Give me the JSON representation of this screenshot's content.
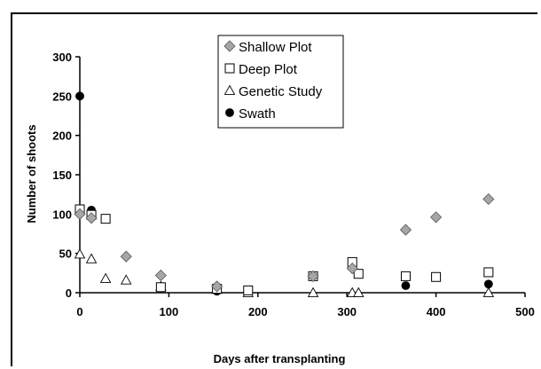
{
  "chart_data": {
    "type": "scatter",
    "title": "",
    "xlabel": "Days after transplanting",
    "ylabel": "Number of shoots",
    "xlim": [
      0,
      500
    ],
    "ylim": [
      0,
      300
    ],
    "xticks": [
      0,
      100,
      200,
      300,
      400,
      500
    ],
    "yticks": [
      0,
      50,
      100,
      150,
      200,
      250,
      300
    ],
    "grid": false,
    "legend_position": "top-center",
    "series": [
      {
        "name": "Shallow Plot",
        "marker": "diamond",
        "color": "#a6a6a6",
        "points": [
          [
            0,
            100
          ],
          [
            13,
            95
          ],
          [
            52,
            46
          ],
          [
            91,
            22
          ],
          [
            154,
            8
          ],
          [
            262,
            21
          ],
          [
            306,
            31
          ],
          [
            366,
            80
          ],
          [
            400,
            96
          ],
          [
            459,
            119
          ]
        ]
      },
      {
        "name": "Deep Plot",
        "marker": "square",
        "color": "#ffffff",
        "points": [
          [
            0,
            106
          ],
          [
            13,
            99
          ],
          [
            29,
            94
          ],
          [
            91,
            7
          ],
          [
            154,
            5
          ],
          [
            189,
            3
          ],
          [
            262,
            21
          ],
          [
            306,
            39
          ],
          [
            313,
            24
          ],
          [
            366,
            21
          ],
          [
            400,
            20
          ],
          [
            459,
            26
          ]
        ]
      },
      {
        "name": "Genetic Study",
        "marker": "triangle",
        "color": "#ffffff",
        "points": [
          [
            0,
            49
          ],
          [
            13,
            43
          ],
          [
            29,
            18
          ],
          [
            52,
            16
          ],
          [
            91,
            8
          ],
          [
            154,
            4
          ],
          [
            189,
            0
          ],
          [
            262,
            0
          ],
          [
            306,
            0
          ],
          [
            313,
            0
          ],
          [
            459,
            0
          ]
        ]
      },
      {
        "name": "Swath",
        "marker": "circle",
        "color": "#000000",
        "points": [
          [
            0,
            250
          ],
          [
            13,
            105
          ],
          [
            154,
            2
          ],
          [
            366,
            9
          ],
          [
            459,
            11
          ]
        ]
      }
    ]
  }
}
